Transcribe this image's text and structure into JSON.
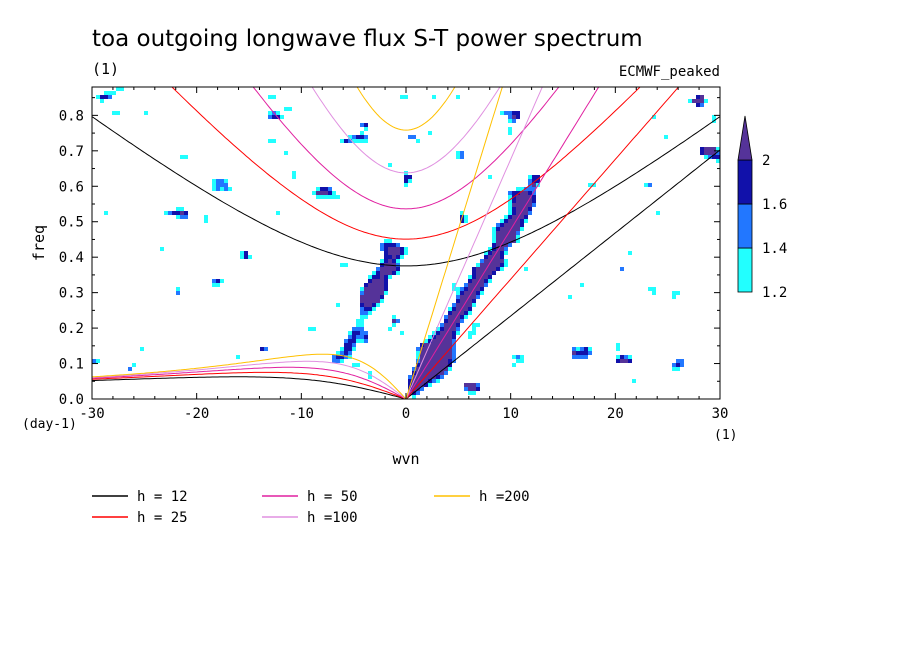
{
  "chart_data": {
    "type": "heatmap",
    "title": "toa outgoing longwave flux S-T power spectrum",
    "subtitle": "(1)",
    "label_right": "ECMWF_peaked",
    "xlabel": "wvn",
    "ylabel": "freq",
    "x_unit_label": "(1)",
    "y_unit_label": "(day-1)",
    "xlim": [
      -30,
      30
    ],
    "ylim": [
      0,
      0.88
    ],
    "x_ticks": [
      -30,
      -20,
      -10,
      0,
      10,
      20,
      30
    ],
    "x_tick_labels": [
      "-30",
      "-20",
      "-10",
      "0",
      "10",
      "20",
      "30"
    ],
    "y_ticks": [
      0,
      0.1,
      0.2,
      0.3,
      0.4,
      0.5,
      0.6,
      0.7,
      0.8
    ],
    "y_tick_labels": [
      "0.0",
      "0.1",
      "0.2",
      "0.3",
      "0.4",
      "0.5",
      "0.6",
      "0.7",
      "0.8"
    ],
    "colorbar": {
      "levels": [
        1.2,
        1.4,
        1.6,
        2
      ],
      "labels": [
        "1.2",
        "1.4",
        "1.6",
        "2"
      ],
      "colors": [
        "#22ffff",
        "#2277ff",
        "#1111aa",
        "#553399"
      ]
    },
    "contours": [
      {
        "level": 1.2,
        "color": "#22ffff"
      },
      {
        "level": 1.4,
        "color": "#2277ff"
      },
      {
        "level": 1.6,
        "color": "#1111aa"
      },
      {
        "level": 2.0,
        "color": "#553399"
      }
    ],
    "dispersion_curves": [
      {
        "name": "h = 12",
        "color": "#000000",
        "equivalent_depth": 12
      },
      {
        "name": "h = 25",
        "color": "#ff0000",
        "equivalent_depth": 25
      },
      {
        "name": "h = 50",
        "color": "#e020a0",
        "equivalent_depth": 50
      },
      {
        "name": "h =100",
        "color": "#e090e0",
        "equivalent_depth": 100
      },
      {
        "name": "h =200",
        "color": "#ffc000",
        "equivalent_depth": 200
      }
    ],
    "peak_regions": [
      {
        "x": 3.5,
        "y": 0.12,
        "level": 2.0
      },
      {
        "x": -3,
        "y": 0.31,
        "level": 2.0
      },
      {
        "x": 0,
        "y": 0.44,
        "level": 1.6
      }
    ],
    "legend_position": "bottom"
  }
}
